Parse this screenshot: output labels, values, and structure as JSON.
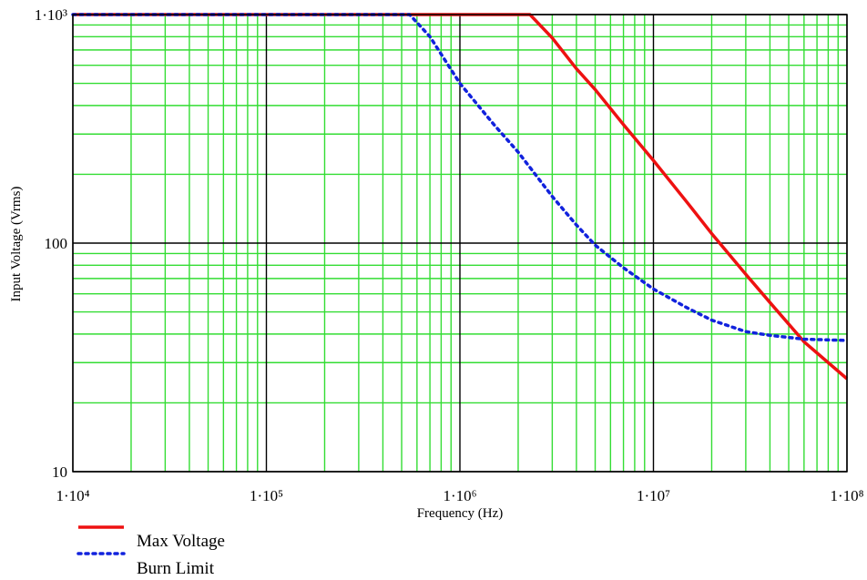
{
  "chart_data": {
    "type": "line",
    "title": "",
    "xlabel": "Frequency (Hz)",
    "ylabel": "Input Voltage (Vrms)",
    "x_scale": "log",
    "y_scale": "log",
    "xlim": [
      10000,
      100000000
    ],
    "ylim": [
      10,
      1000
    ],
    "x_tick_values": [
      10000,
      100000,
      1000000,
      10000000,
      100000000
    ],
    "x_tick_labels": [
      "1·10⁴",
      "1·10⁵",
      "1·10⁶",
      "1·10⁷",
      "1·10⁸"
    ],
    "y_tick_values": [
      10,
      100,
      1000
    ],
    "y_tick_labels": [
      "10",
      "100",
      "1·10³"
    ],
    "grid": true,
    "legend": "bottom-left, below plot",
    "colors": {
      "minor_grid": "#33dd33",
      "major_grid": "#000000",
      "max_voltage": "#ee1111",
      "burn_limit": "#1122dd"
    },
    "series": [
      {
        "name": "Max Voltage",
        "style": "solid",
        "x": [
          10000,
          100000,
          1000000,
          2300000,
          3000000,
          4000000,
          5000000,
          7000000,
          10000000,
          15000000,
          20000000,
          30000000,
          40000000,
          60000000,
          100000000
        ],
        "y": [
          1000,
          1000,
          1000,
          1000,
          790,
          580,
          470,
          330,
          230,
          150,
          110,
          73,
          55,
          37,
          25.5
        ]
      },
      {
        "name": "Burn Limit",
        "style": "dotted",
        "x": [
          10000,
          100000,
          550000,
          700000,
          1000000,
          1500000,
          2000000,
          3000000,
          4000000,
          5000000,
          7000000,
          10000000,
          15000000,
          20000000,
          30000000,
          40000000,
          60000000,
          100000000
        ],
        "y": [
          1000,
          1000,
          1000,
          800,
          500,
          330,
          250,
          160,
          120,
          98,
          78,
          63,
          52,
          46,
          41,
          39.5,
          38,
          37.5
        ]
      }
    ]
  }
}
